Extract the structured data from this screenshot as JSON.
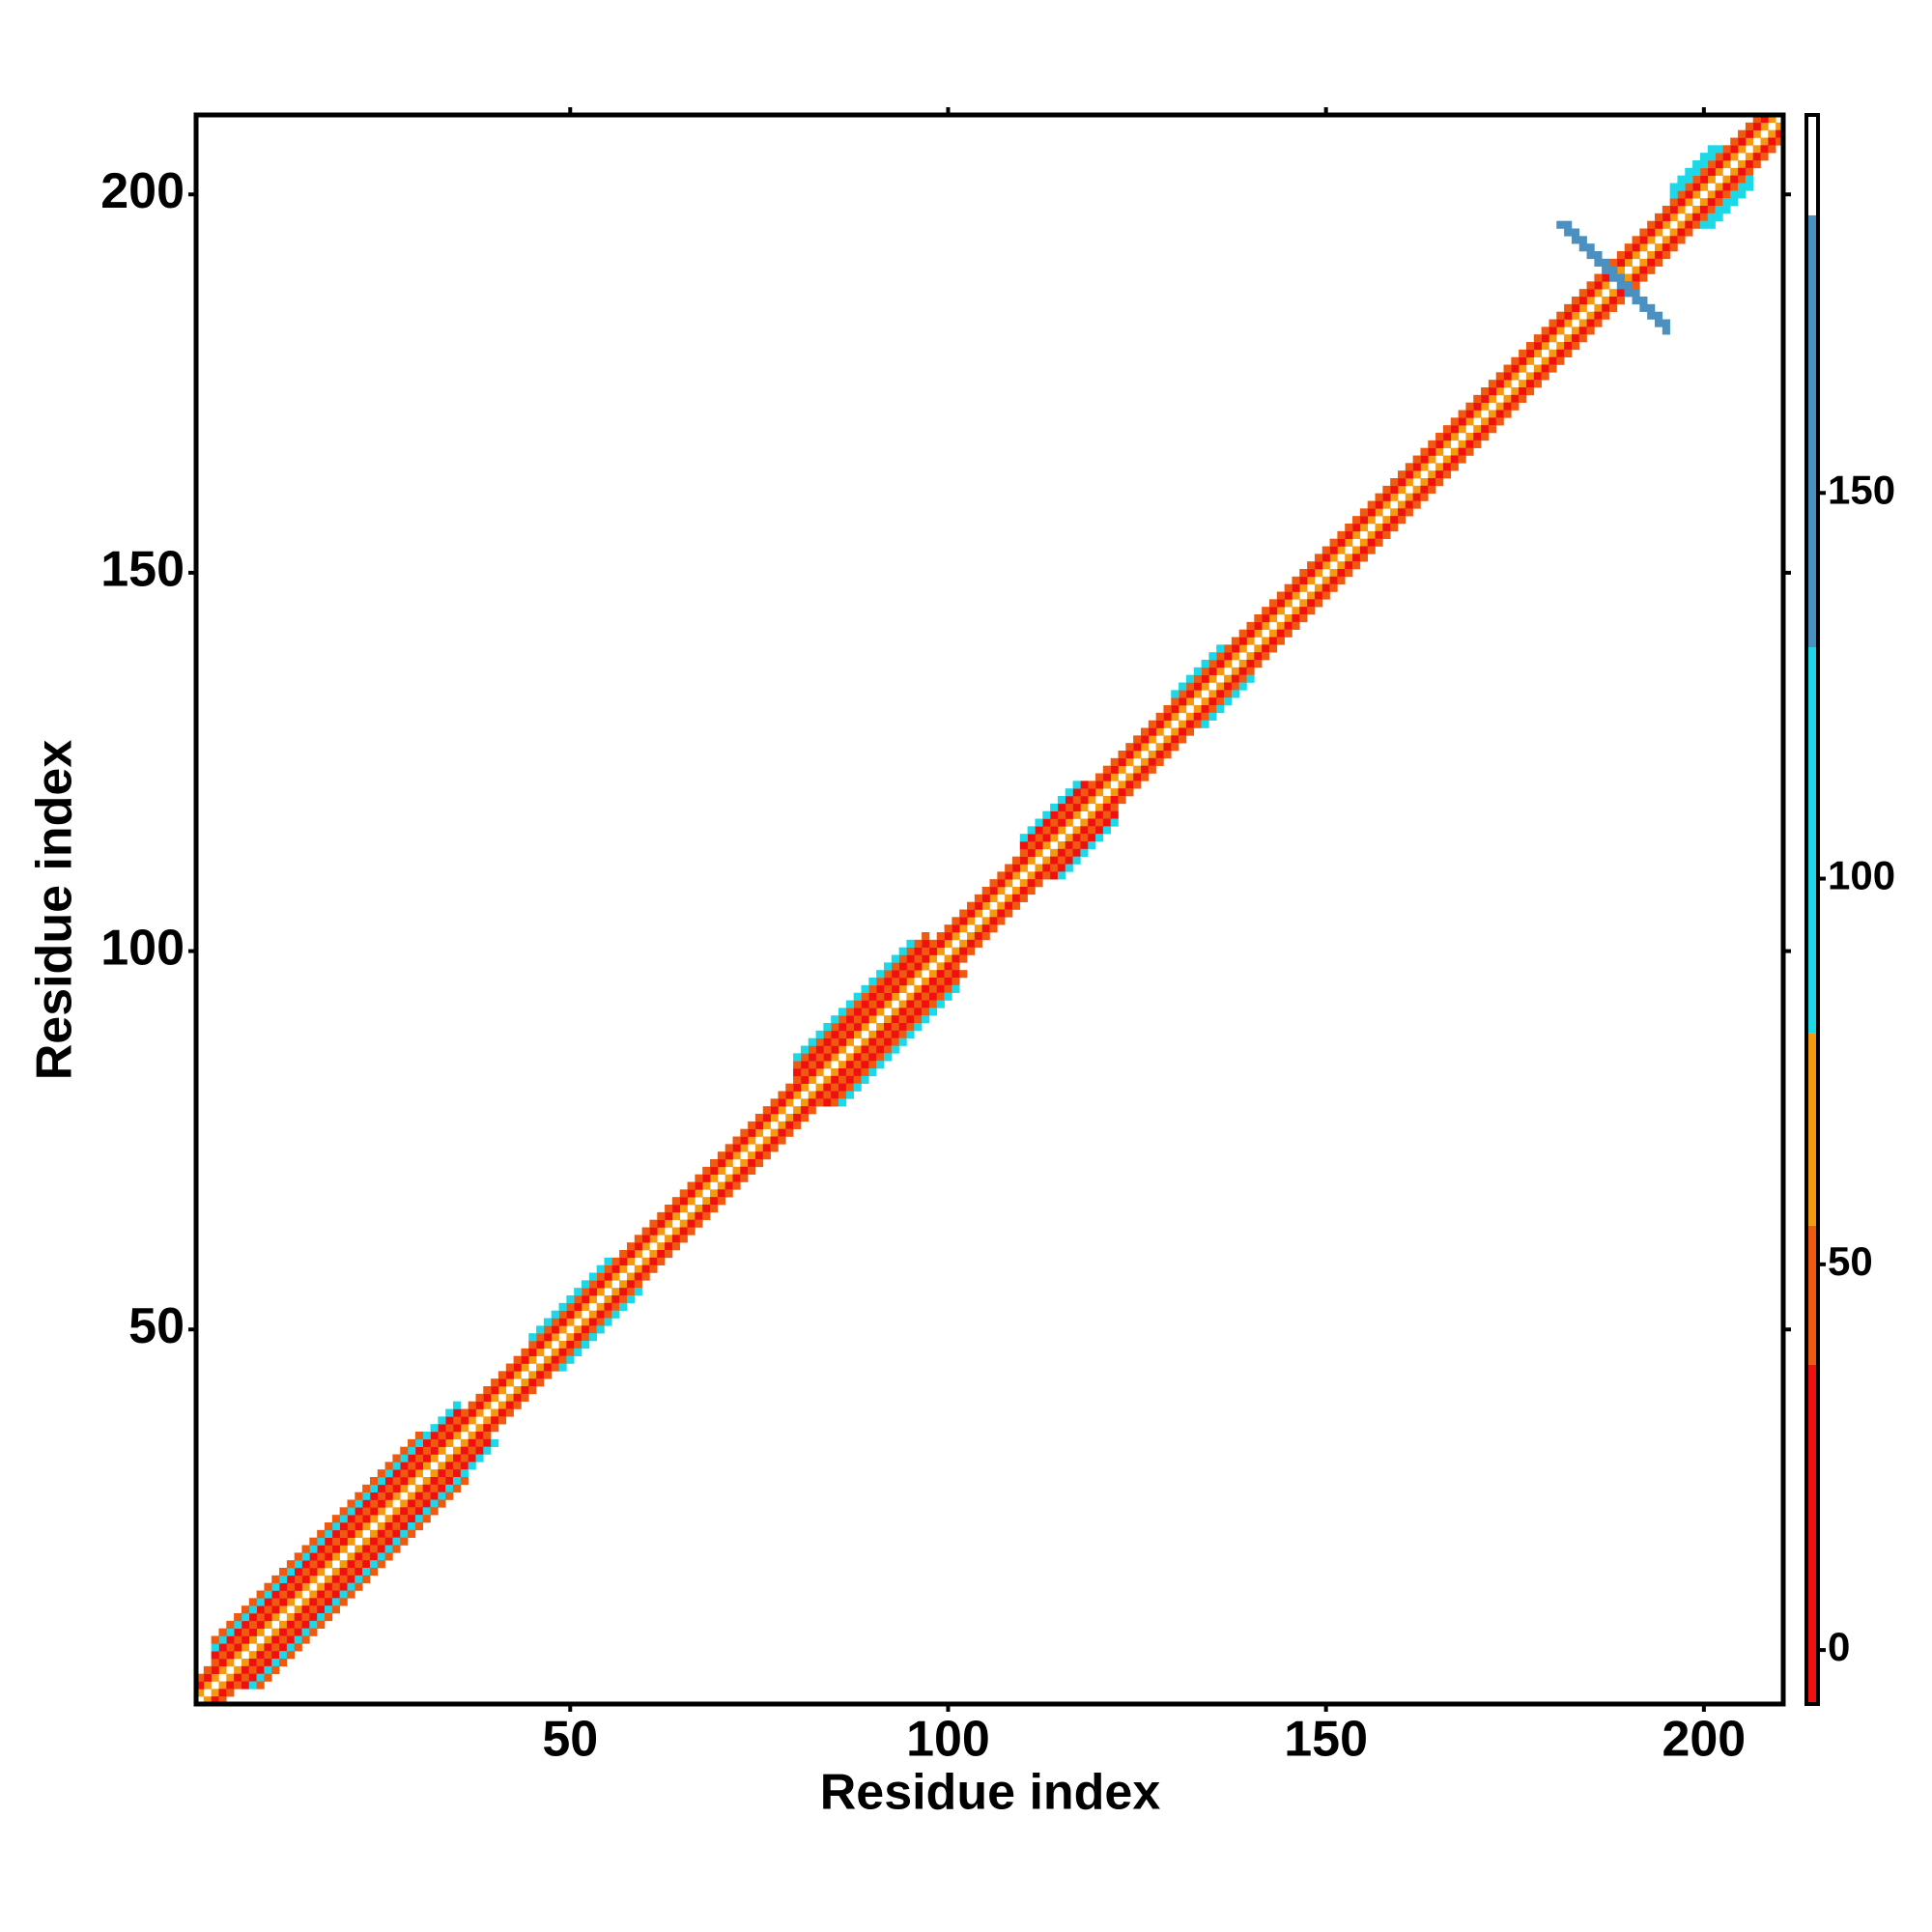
{
  "chart_data": {
    "type": "heatmap",
    "xlabel": "Residue index",
    "ylabel": "Residue index",
    "xlim": [
      0.5,
      210.5
    ],
    "ylim": [
      0.5,
      210.5
    ],
    "xticks": [
      50,
      100,
      150,
      200
    ],
    "yticks": [
      50,
      100,
      150,
      200
    ],
    "bands": [
      {
        "start": 1,
        "end": 210,
        "offset": 0,
        "value": 190
      },
      {
        "start": 1,
        "end": 209,
        "offset": 1,
        "value": 62
      },
      {
        "start": 1,
        "end": 208,
        "offset": 2,
        "value": 5
      },
      {
        "start": 1,
        "end": 207,
        "offset": 3,
        "value": 42
      },
      {
        "start": 3,
        "end": 35,
        "offset": 4,
        "value": 10
      },
      {
        "start": 3,
        "end": 35,
        "offset": 5,
        "value": 90
      },
      {
        "start": 3,
        "end": 30,
        "offset": 6,
        "value": 45
      },
      {
        "start": 80,
        "end": 97,
        "offset": 4,
        "value": 10
      },
      {
        "start": 80,
        "end": 97,
        "offset": 5,
        "value": 45
      },
      {
        "start": 80,
        "end": 95,
        "offset": 6,
        "value": 95
      },
      {
        "start": 110,
        "end": 118,
        "offset": 4,
        "value": 20
      },
      {
        "start": 110,
        "end": 117,
        "offset": 5,
        "value": 100
      },
      {
        "start": 45,
        "end": 55,
        "offset": 4,
        "value": 100
      },
      {
        "start": 130,
        "end": 136,
        "offset": 4,
        "value": 100
      },
      {
        "start": 196,
        "end": 202,
        "offset": 4,
        "value": 105
      },
      {
        "start": 196,
        "end": 201,
        "offset": 5,
        "value": 105
      },
      {
        "start": 181,
        "end": 195,
        "sum": 377,
        "value": 165
      },
      {
        "start": 182,
        "end": 195,
        "sum": 378,
        "value": 165
      }
    ],
    "colorbar": {
      "bounds": [
        -7,
        37,
        55,
        80,
        130,
        186,
        199
      ],
      "colors": [
        "#f01010",
        "#f05a10",
        "#f39a11",
        "#1dd8e6",
        "#4a90c0",
        "#ffffff"
      ],
      "ticks": [
        0,
        50,
        100,
        150
      ]
    }
  }
}
